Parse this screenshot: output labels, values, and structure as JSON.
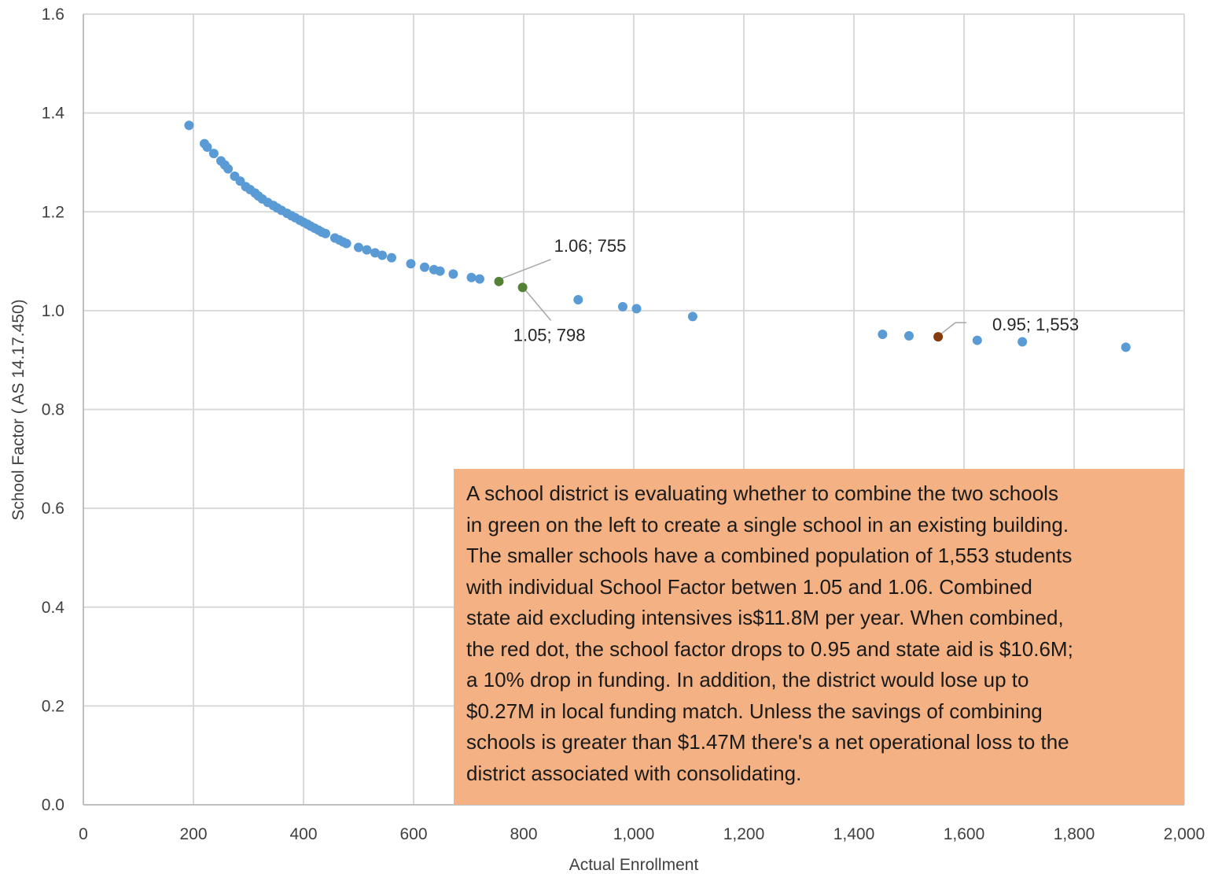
{
  "chart_data": {
    "type": "scatter",
    "xlabel": "Actual Enrollment",
    "ylabel": "School Factor ( AS 14.17.450)",
    "xlim": [
      0,
      2000
    ],
    "ylim": [
      0,
      1.6
    ],
    "grid": true,
    "x_ticks": [
      "0",
      "200",
      "400",
      "600",
      "800",
      "1,000",
      "1,200",
      "1,400",
      "1,600",
      "1,800",
      "2,000"
    ],
    "y_ticks": [
      "0.0",
      "0.2",
      "0.4",
      "0.6",
      "0.8",
      "1.0",
      "1.2",
      "1.4",
      "1.6"
    ],
    "colors": {
      "default": "#5b9bd5",
      "green": "#548235",
      "red": "#843c0c"
    },
    "series": [
      {
        "color": "#5b9bd5",
        "points": [
          [
            192,
            1.375
          ],
          [
            220,
            1.338
          ],
          [
            225,
            1.331
          ],
          [
            237,
            1.318
          ],
          [
            250,
            1.303
          ],
          [
            257,
            1.295
          ],
          [
            263,
            1.287
          ],
          [
            275,
            1.272
          ],
          [
            285,
            1.262
          ],
          [
            295,
            1.251
          ],
          [
            303,
            1.245
          ],
          [
            312,
            1.238
          ],
          [
            318,
            1.232
          ],
          [
            325,
            1.226
          ],
          [
            335,
            1.219
          ],
          [
            345,
            1.213
          ],
          [
            352,
            1.208
          ],
          [
            360,
            1.203
          ],
          [
            370,
            1.197
          ],
          [
            378,
            1.192
          ],
          [
            385,
            1.188
          ],
          [
            393,
            1.183
          ],
          [
            400,
            1.179
          ],
          [
            407,
            1.175
          ],
          [
            413,
            1.171
          ],
          [
            420,
            1.167
          ],
          [
            427,
            1.163
          ],
          [
            433,
            1.159
          ],
          [
            440,
            1.156
          ],
          [
            457,
            1.147
          ],
          [
            465,
            1.143
          ],
          [
            472,
            1.139
          ],
          [
            478,
            1.136
          ],
          [
            500,
            1.128
          ],
          [
            515,
            1.123
          ],
          [
            530,
            1.117
          ],
          [
            543,
            1.112
          ],
          [
            560,
            1.107
          ],
          [
            595,
            1.095
          ],
          [
            620,
            1.088
          ],
          [
            637,
            1.083
          ],
          [
            648,
            1.08
          ],
          [
            672,
            1.074
          ],
          [
            705,
            1.067
          ],
          [
            720,
            1.064
          ],
          [
            899,
            1.022
          ],
          [
            980,
            1.008
          ],
          [
            1005,
            1.004
          ],
          [
            1107,
            0.988
          ],
          [
            1452,
            0.952
          ],
          [
            1500,
            0.949
          ],
          [
            1624,
            0.94
          ],
          [
            1706,
            0.937
          ],
          [
            1894,
            0.926
          ]
        ]
      },
      {
        "color": "#548235",
        "points": [
          [
            755,
            1.059
          ],
          [
            798,
            1.047
          ]
        ],
        "labels": [
          "1.06; 755",
          "1.05; 798"
        ]
      },
      {
        "color": "#843c0c",
        "points": [
          [
            1553,
            0.947
          ]
        ],
        "labels": [
          "0.95; 1,553"
        ]
      }
    ],
    "annotation": [
      "A school district is evaluating whether to combine the two schools",
      "in green on the left to create a single school in an existing building.",
      "The smaller schools have a combined population of 1,553 students",
      "with individual School Factor betwen 1.05 and 1.06. Combined",
      "state aid excluding intensives is$11.8M per year.  When combined,",
      "the red dot, the school factor drops to 0.95 and state aid is $10.6M;",
      "a 10% drop in funding.  In addition, the district would lose up to",
      "$0.27M in local funding match. Unless the savings of combining",
      "schools is greater than $1.47M there's a net operational loss to the",
      "district associated with consolidating."
    ]
  }
}
